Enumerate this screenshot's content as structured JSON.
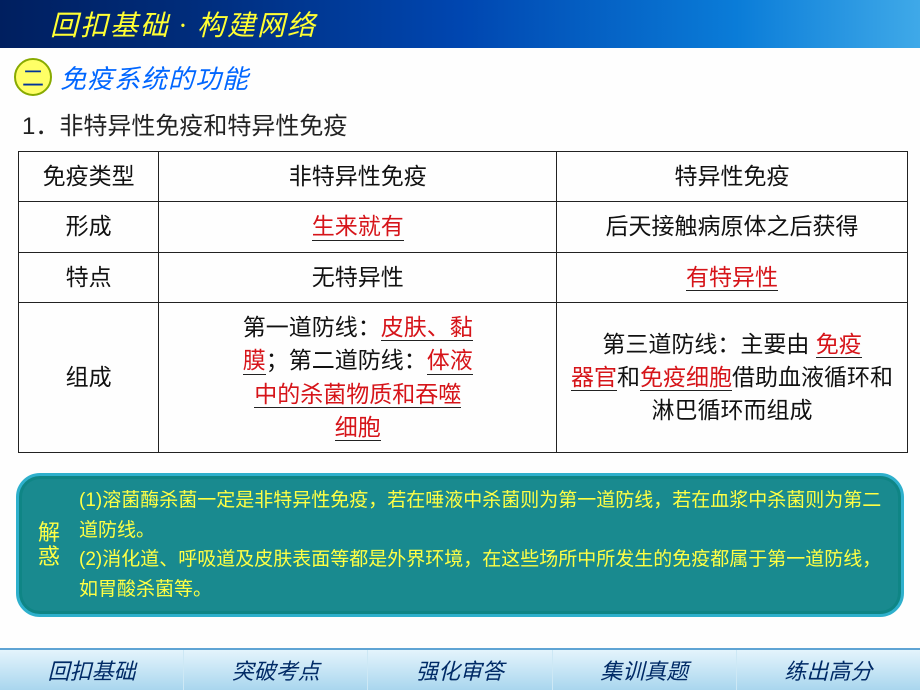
{
  "header": {
    "title": "回扣基础 · 构建网络"
  },
  "subheader": {
    "badge": "二",
    "title": "免疫系统的功能"
  },
  "section": {
    "title": "1．非特异性免疫和特异性免疫"
  },
  "table": {
    "head": {
      "c1": "免疫类型",
      "c2": "非特异性免疫",
      "c3": "特异性免疫"
    },
    "row_formation": {
      "label": "形成",
      "c2_fill": "生来就有",
      "c3_text": "后天接触病原体之后获得"
    },
    "row_feature": {
      "label": "特点",
      "c2_text": "无特异性",
      "c3_fill": "有特异性"
    },
    "row_comp": {
      "label": "组成",
      "c2": {
        "t1": "第一道防线：",
        "f1": "皮肤、黏",
        "f1b": "膜",
        "t2": "；第二道防线：",
        "f2": "体液",
        "f2b": "中的杀菌物质和吞噬",
        "f2c": "细胞"
      },
      "c3": {
        "t1": "第三道防线：主要由",
        "f1": "免疫",
        "f1b": "器官",
        "t2": "和",
        "f2": "免疫细胞",
        "t3": "借助血液循环和淋巴循环而组成"
      }
    }
  },
  "tip": {
    "label1": "解",
    "label2": "惑",
    "line1": "(1)溶菌酶杀菌一定是非特异性免疫，若在唾液中杀菌则为第一道防线，若在血浆中杀菌则为第二道防线。",
    "line2": "(2)消化道、呼吸道及皮肤表面等都是外界环境，在这些场所中所发生的免疫都属于第一道防线，如胃酸杀菌等。"
  },
  "nav": {
    "items": [
      "回扣基础",
      "突破考点",
      "强化审答",
      "集训真题",
      "练出高分"
    ]
  }
}
